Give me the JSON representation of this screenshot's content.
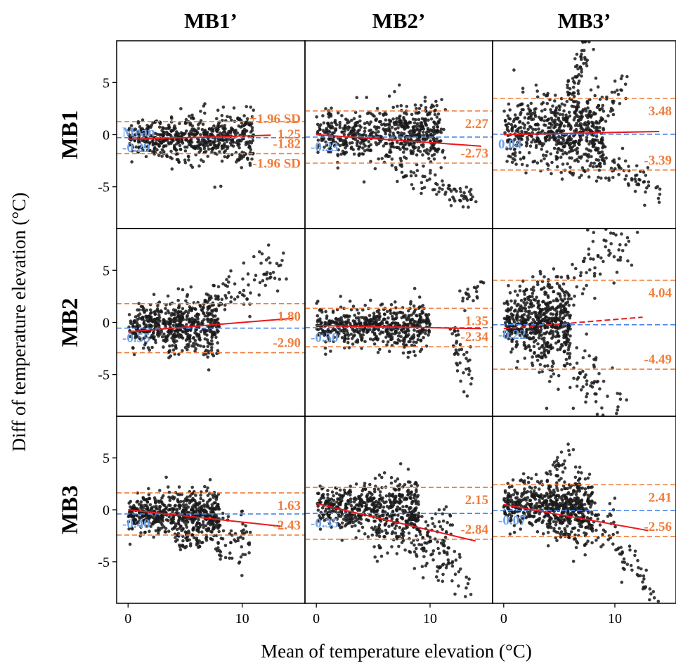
{
  "colors": {
    "points": "#1a1a1a",
    "limit": "#f07d3c",
    "mean": "#4a86e8",
    "mean_text": "#6fa0e8",
    "regression": "#e8191c"
  },
  "chart_data": {
    "type": "scatter",
    "subtype": "bland-altman facet grid",
    "xlabel": "Mean of temperature elevation (°C)",
    "ylabel": "Diff of temperature elevation (°C)",
    "xlim": [
      -1,
      15.5
    ],
    "ylim": [
      -9,
      9
    ],
    "x_ticks": [
      0,
      10
    ],
    "y_ticks": [
      -5,
      0,
      5
    ],
    "columns": [
      "MB1’",
      "MB2’",
      "MB3’"
    ],
    "rows": [
      "MB1",
      "MB2",
      "MB3"
    ],
    "legend_labels": {
      "mean": "Mean",
      "upper": "+1.96 SD",
      "lower": "-1.96 SD"
    },
    "panels": [
      {
        "row": "MB1",
        "col": "MB1’",
        "mean": -0.29,
        "upper": 1.25,
        "lower": -1.82,
        "mean_label": "-0.29",
        "upper_label": "1.25",
        "lower_label": "-1.82",
        "reg": [
          [
            0,
            -0.45
          ],
          [
            12.5,
            -0.05
          ]
        ],
        "reg_dashed": false,
        "show_legend": true,
        "clouds": [
          [
            0,
            11,
            -0.3,
            1.1,
            600
          ]
        ],
        "tails": []
      },
      {
        "row": "MB1",
        "col": "MB2’",
        "mean": -0.23,
        "upper": 2.27,
        "lower": -2.73,
        "mean_label": "-0.23",
        "upper_label": "2.27",
        "lower_label": "-2.73",
        "reg": [
          [
            0,
            0
          ],
          [
            14.5,
            -1.1
          ]
        ],
        "reg_dashed": false,
        "show_legend": false,
        "clouds": [
          [
            0,
            11,
            0,
            1.3,
            550
          ],
          [
            7,
            11.5,
            0.5,
            1.6,
            80
          ]
        ],
        "tails": [
          [
            7.5,
            -3.5,
            14,
            -6.5,
            70,
            0.6
          ]
        ]
      },
      {
        "row": "MB1",
        "col": "MB3’",
        "mean": 0.04,
        "upper": 3.48,
        "lower": -3.39,
        "mean_label": "0.04",
        "upper_label": "3.48",
        "lower_label": "-3.39",
        "reg": [
          [
            0,
            0
          ],
          [
            14,
            0.3
          ]
        ],
        "reg_dashed": false,
        "show_legend": false,
        "clouds": [
          [
            0,
            9,
            0.3,
            1.9,
            600
          ]
        ],
        "tails": [
          [
            6,
            3,
            7.5,
            8.8,
            60,
            0.8
          ],
          [
            8,
            -2,
            14,
            -5.5,
            70,
            0.8
          ],
          [
            9,
            2,
            11,
            5,
            25,
            0.8
          ]
        ]
      },
      {
        "row": "MB2",
        "col": "MB1’",
        "mean": -0.55,
        "upper": 1.8,
        "lower": -2.9,
        "mean_label": "-0.55",
        "upper_label": "1.80",
        "lower_label": "-2.90",
        "reg": [
          [
            0,
            -0.9
          ],
          [
            14.5,
            0.4
          ]
        ],
        "reg_dashed": false,
        "show_legend": false,
        "clouds": [
          [
            0,
            8,
            -0.4,
            1.3,
            550
          ]
        ],
        "tails": [
          [
            7,
            2,
            13.5,
            5.5,
            80,
            1.2
          ]
        ]
      },
      {
        "row": "MB2",
        "col": "MB2’",
        "mean": -0.5,
        "upper": 1.35,
        "lower": -2.34,
        "mean_label": "-0.50",
        "upper_label": "1.35",
        "lower_label": "-2.34",
        "reg": [
          [
            0,
            -0.3
          ],
          [
            14.5,
            -0.6
          ]
        ],
        "reg_dashed": false,
        "show_legend": false,
        "clouds": [
          [
            0,
            10,
            -0.4,
            1.1,
            550
          ]
        ],
        "tails": [
          [
            12,
            -1,
            13.5,
            -5.5,
            40,
            0.8
          ],
          [
            13,
            2,
            14.5,
            3.8,
            20,
            0.6
          ]
        ]
      },
      {
        "row": "MB2",
        "col": "MB3’",
        "mean": -0.22,
        "upper": 4.04,
        "lower": -4.49,
        "mean_label": "-0.22",
        "upper_label": "4.04",
        "lower_label": "-4.49",
        "reg": [
          [
            0,
            -0.6
          ],
          [
            12.5,
            0.5
          ]
        ],
        "reg_dashed": true,
        "show_legend": false,
        "clouds": [
          [
            0,
            6,
            0,
            1.6,
            500
          ]
        ],
        "tails": [
          [
            2,
            1,
            12,
            8.8,
            110,
            1.6
          ],
          [
            2,
            -1,
            11,
            -8.8,
            120,
            1.6
          ]
        ]
      },
      {
        "row": "MB3",
        "col": "MB1’",
        "mean": -0.4,
        "upper": 1.63,
        "lower": -2.43,
        "mean_label": "-0.40",
        "upper_label": "1.63",
        "lower_label": "-2.43",
        "reg": [
          [
            0,
            0
          ],
          [
            13.5,
            -1.6
          ]
        ],
        "reg_dashed": false,
        "show_legend": false,
        "clouds": [
          [
            0,
            8,
            -0.3,
            1.1,
            550
          ],
          [
            4,
            11,
            -2.5,
            1.2,
            120
          ]
        ],
        "tails": []
      },
      {
        "row": "MB3",
        "col": "MB2’",
        "mean": -0.35,
        "upper": 2.15,
        "lower": -2.84,
        "mean_label": "-0.35",
        "upper_label": "2.15",
        "lower_label": "-2.84",
        "reg": [
          [
            0,
            0.6
          ],
          [
            14,
            -3
          ]
        ],
        "reg_dashed": false,
        "show_legend": false,
        "clouds": [
          [
            0,
            9,
            0.2,
            1.2,
            550
          ],
          [
            5,
            12,
            -2.5,
            1.3,
            120
          ]
        ],
        "tails": [
          [
            9,
            -3,
            14,
            -7.5,
            60,
            1.2
          ]
        ]
      },
      {
        "row": "MB3",
        "col": "MB3’",
        "mean": -0.07,
        "upper": 2.41,
        "lower": -2.56,
        "mean_label": "-0.07",
        "upper_label": "2.41",
        "lower_label": "-2.56",
        "reg": [
          [
            0,
            0.5
          ],
          [
            13,
            -2
          ]
        ],
        "reg_dashed": false,
        "show_legend": false,
        "clouds": [
          [
            0,
            8,
            0.5,
            1.3,
            550
          ],
          [
            4,
            10,
            -1.5,
            1.2,
            100
          ]
        ],
        "tails": [
          [
            9,
            -2,
            13.5,
            -7.5,
            50,
            1
          ],
          [
            4,
            3,
            6,
            6,
            25,
            0.6
          ]
        ]
      }
    ]
  }
}
